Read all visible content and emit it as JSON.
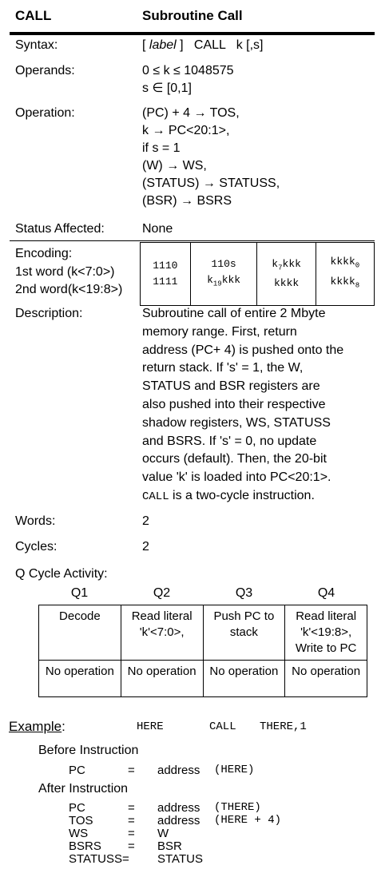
{
  "header": {
    "mnemonic": "CALL",
    "title": "Subroutine Call"
  },
  "syntax": {
    "label": "Syntax:",
    "open": "[ ",
    "label_word": "label",
    "rest": " ]   CALL   k [,s]"
  },
  "operands": {
    "label": "Operands:",
    "lines": [
      "0 ≤ k ≤ 1048575",
      "s ∈ [0,1]"
    ]
  },
  "operation": {
    "label": "Operation:",
    "lines": [
      "(PC) + 4 → TOS,",
      "k → PC<20:1>,",
      "if s = 1",
      "(W) → WS,",
      "(STATUS) → STATUSS,",
      "(BSR) → BSRS"
    ]
  },
  "status": {
    "label": "Status Affected:",
    "value": "None"
  },
  "encoding": {
    "label": "Encoding:",
    "row_labels": [
      "1st word (k<7:0>)",
      "2nd word(k<19:8>)"
    ],
    "cells": [
      [
        "1110",
        "1111"
      ],
      [
        "110s",
        "k19kkk"
      ],
      [
        "k7kkk",
        "kkkk"
      ],
      [
        "kkkk0",
        "kkkk8"
      ]
    ]
  },
  "description": {
    "label": "Description:",
    "lines": [
      "Subroutine call of entire 2 Mbyte",
      "memory range.  First, return",
      "address (PC+ 4) is pushed onto the",
      "return stack.  If 's' = 1, the W,",
      "STATUS and BSR registers are",
      "also pushed into their respective",
      "shadow registers, WS, STATUSS",
      "and BSRS.  If 's' = 0, no update",
      "occurs (default). Then, the 20-bit",
      "value 'k' is loaded into PC<20:1>."
    ],
    "last_mono": "CALL",
    "last_rest": " is a two-cycle instruction."
  },
  "words": {
    "label": "Words:",
    "value": "2"
  },
  "cycles": {
    "label": "Cycles:",
    "value": "2"
  },
  "qcycle": {
    "label": "Q Cycle Activity:",
    "headers": [
      "Q1",
      "Q2",
      "Q3",
      "Q4"
    ],
    "row1": [
      "Decode",
      "Read literal 'k'<7:0>,",
      "Push PC to stack",
      "Read literal 'k'<19:8>, Write to PC"
    ],
    "row2": [
      "No operation",
      "No operation",
      "No operation",
      "No operation"
    ]
  },
  "example": {
    "label": "Example",
    "colon": ":",
    "code": [
      "HERE",
      "CALL",
      "THERE,1"
    ],
    "before_title": "Before Instruction",
    "before": [
      {
        "reg": "PC",
        "eq": "=",
        "val": "address",
        "note": "(HERE)"
      }
    ],
    "after_title": "After Instruction",
    "after": [
      {
        "reg": "PC",
        "eq": "=",
        "val": "address",
        "note": "(THERE)"
      },
      {
        "reg": "TOS",
        "eq": "=",
        "val": "address",
        "note": "(HERE + 4)"
      },
      {
        "reg": "WS",
        "eq": "=",
        "val": "W",
        "note": ""
      },
      {
        "reg": "BSRS",
        "eq": "=",
        "val": "BSR",
        "note": ""
      },
      {
        "reg": "STATUSS=",
        "eq": "",
        "val": "STATUS",
        "note": ""
      }
    ]
  }
}
